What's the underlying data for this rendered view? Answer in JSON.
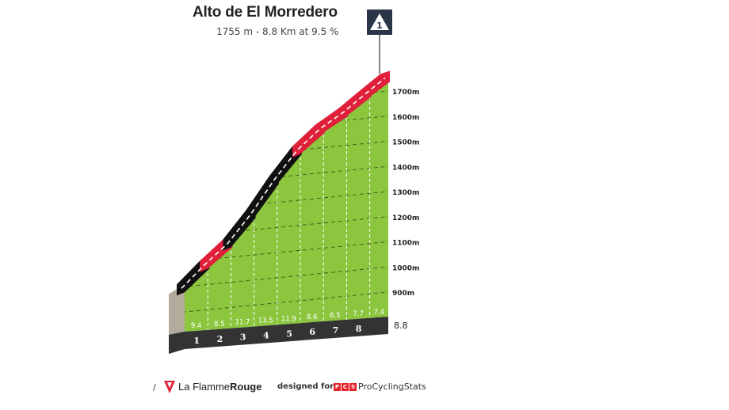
{
  "header": {
    "title": "Alto de El Morredero",
    "subtitle": "1755 m - 8.8 Km at 9.5 %",
    "category": "1"
  },
  "footer": {
    "mark": "/",
    "brand_prefix": "La Flamme",
    "brand_suffix": "Rouge",
    "designed_for": "designed for",
    "pcs_badge": [
      "P",
      "C",
      "S"
    ],
    "pcs_name": "ProCyclingStats"
  },
  "colors": {
    "grass": "#8cc63f",
    "road_black": "#111111",
    "road_red": "#e0203a",
    "base": "#333333",
    "badge_bg": "#2a3547"
  },
  "chart_data": {
    "type": "area",
    "title": "Alto de El Morredero",
    "subtitle": "1755 m - 8.8 Km at 9.5 %",
    "xlabel": "",
    "ylabel": "",
    "x_unit": "km",
    "y_unit": "m",
    "xlim": [
      0,
      8.8
    ],
    "ylim": [
      870,
      1755
    ],
    "y_ticks": [
      900,
      1000,
      1100,
      1200,
      1300,
      1400,
      1500,
      1600,
      1700
    ],
    "y_tick_labels": [
      "900m",
      "1000m",
      "1100m",
      "1200m",
      "1300m",
      "1400m",
      "1500m",
      "1600m",
      "1700m"
    ],
    "km_labels": [
      "1",
      "2",
      "3",
      "4",
      "5",
      "6",
      "7",
      "8"
    ],
    "end_label": "8.8",
    "segments": [
      {
        "km": [
          0,
          1
        ],
        "gradient": 9.4,
        "label": "9.4",
        "color": "black"
      },
      {
        "km": [
          1,
          2
        ],
        "gradient": 8.5,
        "label": "8.5",
        "color": "red"
      },
      {
        "km": [
          2,
          3
        ],
        "gradient": 11.7,
        "label": "11.7",
        "color": "black"
      },
      {
        "km": [
          3,
          4
        ],
        "gradient": 13.5,
        "label": "13.5",
        "color": "black"
      },
      {
        "km": [
          4,
          5
        ],
        "gradient": 11.9,
        "label": "11.9",
        "color": "black"
      },
      {
        "km": [
          5,
          6
        ],
        "gradient": 8.6,
        "label": "8.6",
        "color": "red"
      },
      {
        "km": [
          6,
          7
        ],
        "gradient": 6.5,
        "label": "6.5",
        "color": "red"
      },
      {
        "km": [
          7,
          8
        ],
        "gradient": 7.7,
        "label": "7.7",
        "color": "red"
      },
      {
        "km": [
          8,
          8.8
        ],
        "gradient": 7.4,
        "label": "7.4",
        "color": "red"
      }
    ],
    "summit_elevation": 1755,
    "length_km": 8.8,
    "avg_gradient": 9.5
  }
}
